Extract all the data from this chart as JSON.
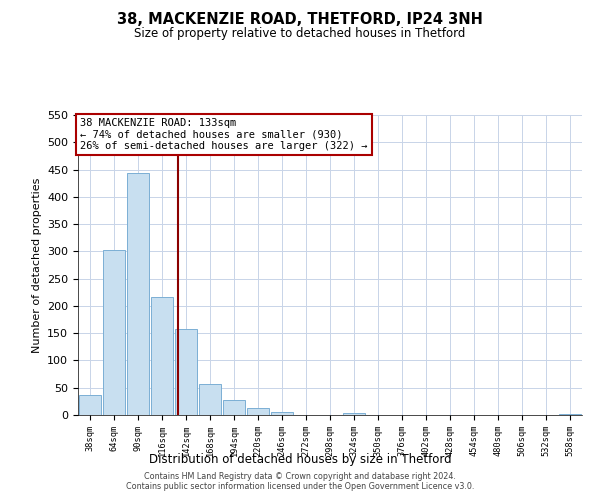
{
  "title": "38, MACKENZIE ROAD, THETFORD, IP24 3NH",
  "subtitle": "Size of property relative to detached houses in Thetford",
  "xlabel": "Distribution of detached houses by size in Thetford",
  "ylabel": "Number of detached properties",
  "bar_labels": [
    "38sqm",
    "64sqm",
    "90sqm",
    "116sqm",
    "142sqm",
    "168sqm",
    "194sqm",
    "220sqm",
    "246sqm",
    "272sqm",
    "298sqm",
    "324sqm",
    "350sqm",
    "376sqm",
    "402sqm",
    "428sqm",
    "454sqm",
    "480sqm",
    "506sqm",
    "532sqm",
    "558sqm"
  ],
  "bar_values": [
    37,
    303,
    443,
    217,
    158,
    57,
    27,
    12,
    5,
    0,
    0,
    3,
    0,
    0,
    0,
    0,
    0,
    0,
    0,
    0,
    2
  ],
  "bar_color": "#c8dff0",
  "bar_edge_color": "#7bafd4",
  "vline_color": "#8b0000",
  "vline_x": 3.65,
  "ylim": [
    0,
    550
  ],
  "yticks": [
    0,
    50,
    100,
    150,
    200,
    250,
    300,
    350,
    400,
    450,
    500,
    550
  ],
  "annotation_title": "38 MACKENZIE ROAD: 133sqm",
  "annotation_line1": "← 74% of detached houses are smaller (930)",
  "annotation_line2": "26% of semi-detached houses are larger (322) →",
  "annotation_box_color": "#ffffff",
  "annotation_box_edge": "#aa0000",
  "footer_line1": "Contains HM Land Registry data © Crown copyright and database right 2024.",
  "footer_line2": "Contains public sector information licensed under the Open Government Licence v3.0.",
  "bg_color": "#ffffff",
  "grid_color": "#c8d4e8"
}
